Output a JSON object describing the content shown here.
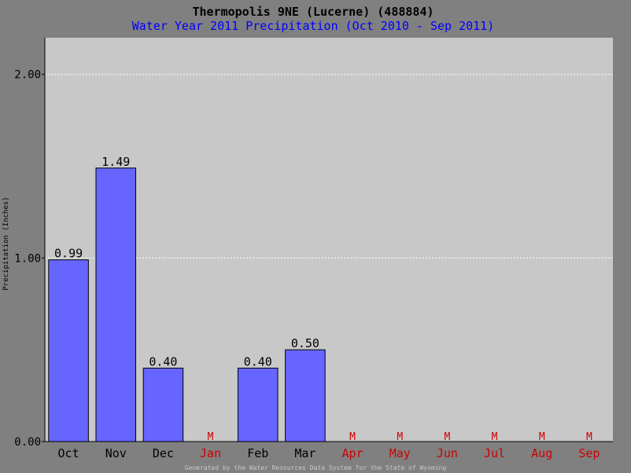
{
  "chart_data": {
    "type": "bar",
    "title": "Thermopolis 9NE (Lucerne) (488884)",
    "subtitle": "Water Year 2011 Precipitation (Oct 2010 - Sep 2011)",
    "ylabel": "Precipitation (Inches)",
    "xlabel": "",
    "footer": "Generated by the Water Resources Data System for the State of Wyoming",
    "ylim": [
      0,
      2.2
    ],
    "yticks": [
      0,
      1,
      2
    ],
    "ytick_labels": [
      "0.00",
      "1.00",
      "2.00"
    ],
    "grid": true,
    "categories": [
      "Oct",
      "Nov",
      "Dec",
      "Jan",
      "Feb",
      "Mar",
      "Apr",
      "May",
      "Jun",
      "Jul",
      "Aug",
      "Sep"
    ],
    "values": [
      0.99,
      1.49,
      0.4,
      null,
      0.4,
      0.5,
      null,
      null,
      null,
      null,
      null,
      null
    ],
    "value_labels": [
      "0.99",
      "1.49",
      "0.40",
      "M",
      "0.40",
      "0.50",
      "M",
      "M",
      "M",
      "M",
      "M",
      "M"
    ],
    "missing_marker": "M",
    "colors": {
      "bar": "#6666ff",
      "plot_bg": "#c8c8c8",
      "page_bg": "#808080",
      "subtitle": "#0000ff",
      "missing": "#cc0000",
      "grid": "#ffffff"
    }
  }
}
